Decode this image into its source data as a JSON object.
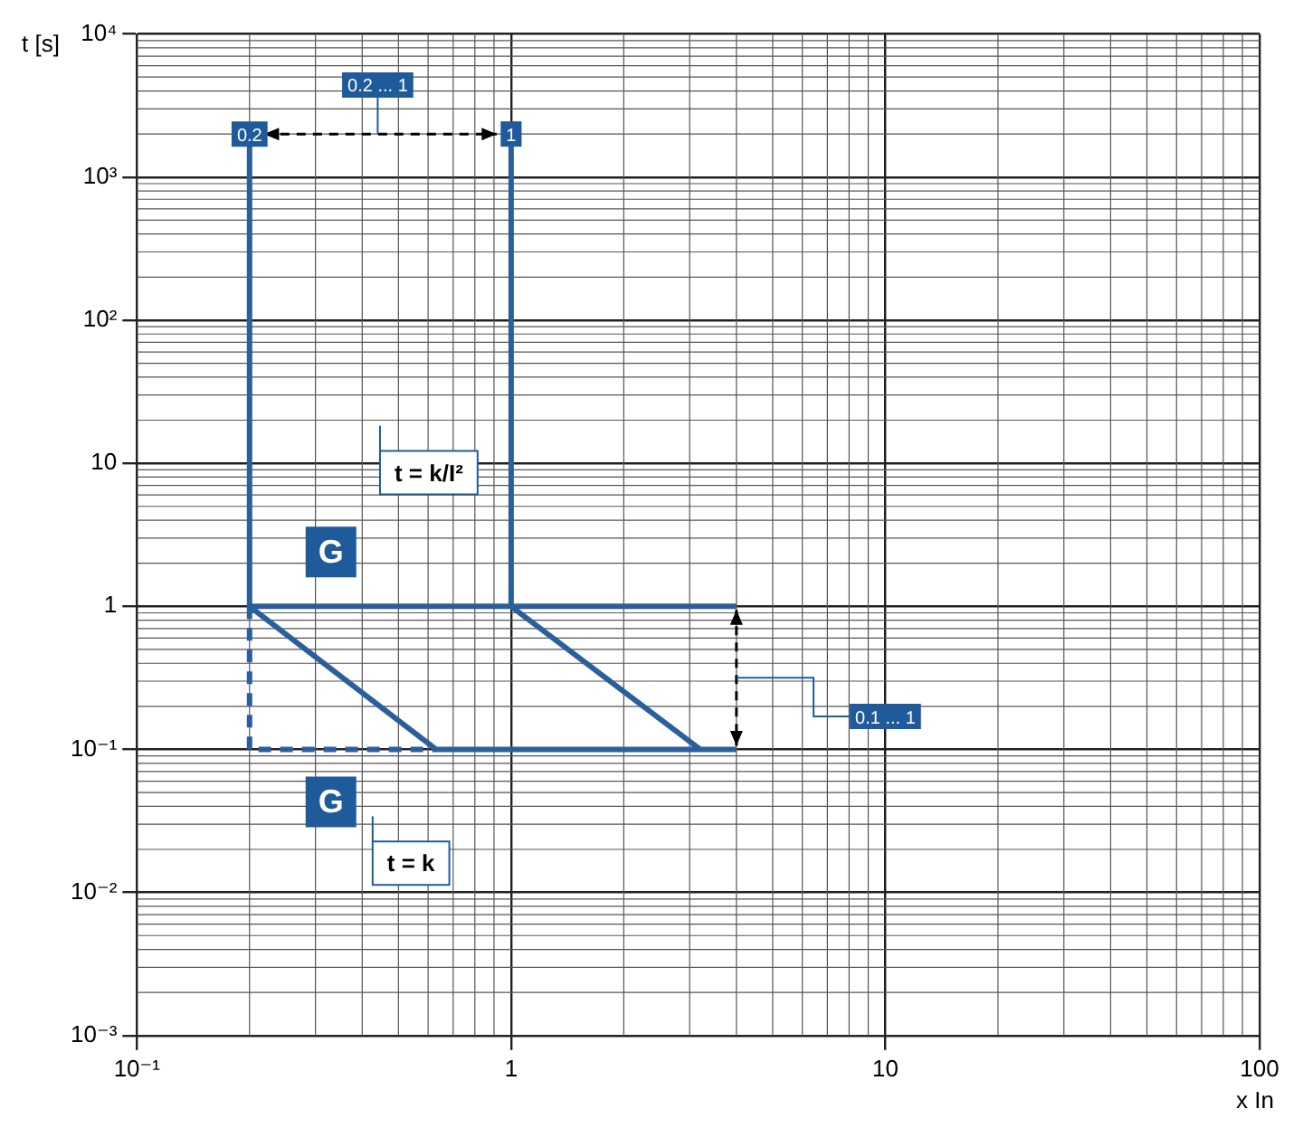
{
  "chart_data": {
    "type": "line",
    "xlabel": "x In",
    "ylabel": "t [s]",
    "log": "xy",
    "grid": true,
    "marker": "none",
    "legend": false,
    "xlim": [
      0.1,
      100
    ],
    "xticks": [
      {
        "value": 0.1,
        "label": "10⁻¹"
      },
      1,
      10,
      100
    ],
    "ylim": [
      0.001,
      10000
    ],
    "yticks": [
      {
        "value": 0.001,
        "label": "10⁻³"
      },
      {
        "value": 0.01,
        "label": "10⁻²"
      },
      {
        "value": 0.1,
        "label": "10⁻¹"
      },
      1,
      10,
      {
        "value": 100,
        "label": "10²"
      },
      {
        "value": 1000,
        "label": "10³"
      },
      {
        "value": 10000,
        "label": "10⁴"
      }
    ],
    "series": [
      {
        "color": "#2b5f9c",
        "x": [
          0.2,
          0.2,
          4
        ],
        "values": [
          2000,
          1,
          1
        ]
      },
      {
        "color": "#2b5f9c",
        "x": [
          1,
          1,
          3.2
        ],
        "values": [
          2000,
          1,
          0.1
        ]
      },
      {
        "color": "#2b5f9c",
        "x": [
          0.2,
          0.63,
          4
        ],
        "values": [
          1,
          0.1,
          0.1
        ]
      },
      {
        "color": "#2b5f9c",
        "x": [
          0.2,
          0.2,
          0.63
        ],
        "values": [
          1,
          0.1,
          0.1
        ],
        "line_style": "dashed"
      }
    ],
    "annotations": [
      {
        "text": "0.2",
        "x": 0.2,
        "y": 2000
      },
      {
        "text": "1",
        "x": 1,
        "y": 2000
      },
      {
        "text": "0.2 ... 1",
        "x": 0.44,
        "y": 4400
      },
      {
        "text": "0.1 ... 1",
        "x": 10,
        "y": 0.17
      },
      {
        "text": "G",
        "x": 0.33,
        "y": 2.4
      },
      "t = k/I²",
      {
        "text": "G",
        "x": 0.33,
        "y": 0.043
      },
      {
        "text": "t = k",
        "x": 0.54,
        "y": 0.016
      }
    ]
  }
}
